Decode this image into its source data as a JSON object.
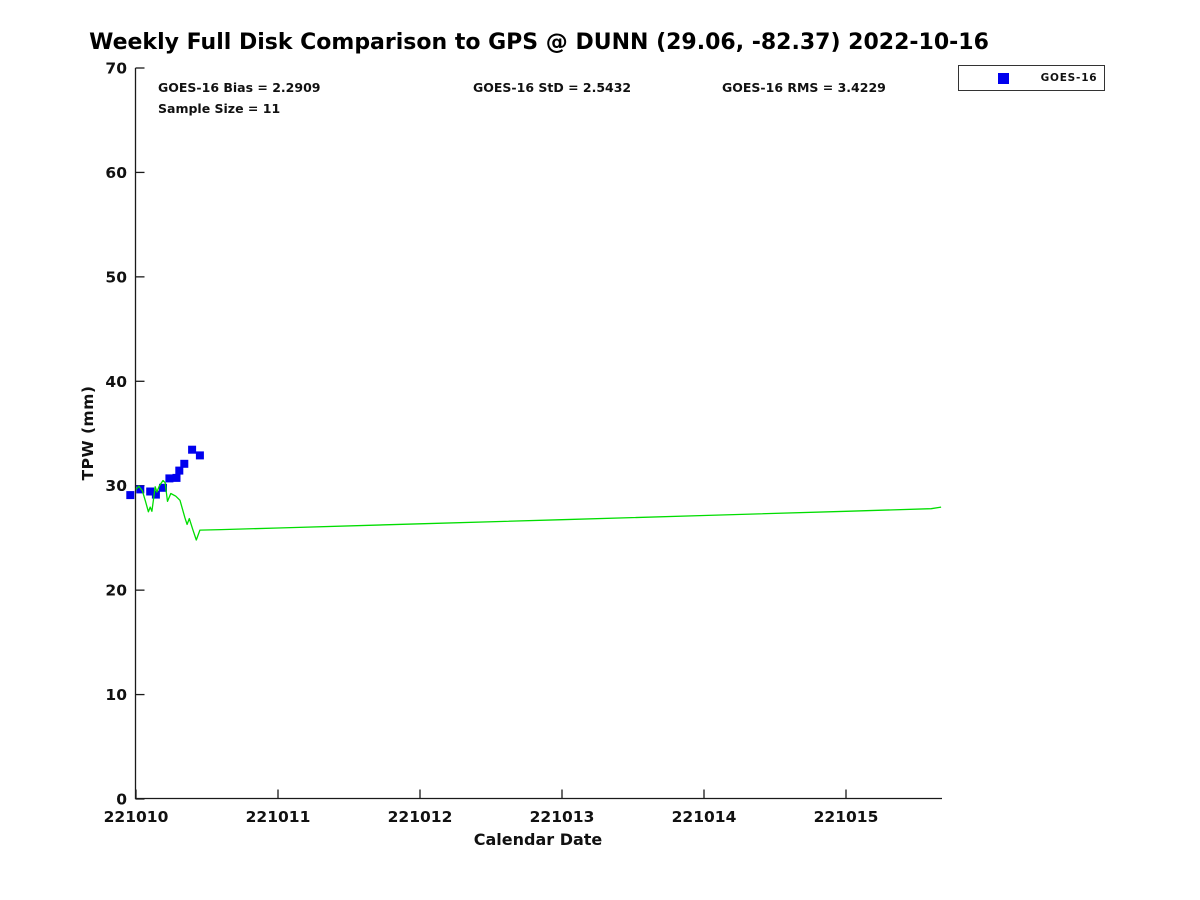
{
  "title": "Weekly Full Disk Comparison to GPS @ DUNN (29.06, -82.37) 2022-10-16",
  "annotations": {
    "bias": "GOES-16 Bias = 2.2909",
    "std": "GOES-16 StD = 2.5432",
    "rms": "GOES-16 RMS = 3.4229",
    "sample_size": "Sample Size = 11"
  },
  "axes": {
    "xlabel": "Calendar Date",
    "ylabel": "TPW (mm)"
  },
  "legend": {
    "label": "GOES-16",
    "marker_color": "#0000ee",
    "position": "top-right-outside"
  },
  "colors": {
    "goes16_marker": "#0000ee",
    "line_green": "#00dd00",
    "axis": "#1a1a1a",
    "text": "#111111",
    "background": "#ffffff"
  },
  "chart_data": {
    "type": "scatter",
    "title": "Weekly Full Disk Comparison to GPS @ DUNN (29.06, -82.37) 2022-10-16",
    "xlabel": "Calendar Date",
    "ylabel": "TPW (mm)",
    "xlim": [
      221010,
      221015.68
    ],
    "ylim": [
      0,
      70
    ],
    "x_ticks": [
      221010,
      221011,
      221012,
      221013,
      221014,
      221015
    ],
    "y_ticks": [
      0,
      10,
      20,
      30,
      40,
      50,
      60,
      70
    ],
    "grid": false,
    "legend_position": "top-right-outside",
    "stats": {
      "bias": 2.2909,
      "std": 2.5432,
      "rms": 3.4229,
      "sample_size": 11
    },
    "series": [
      {
        "name": "GOES-16",
        "type": "scatter",
        "marker": "square",
        "marker_size": 8,
        "color": "#0000ee",
        "points": [
          [
            221009.96,
            29.1
          ],
          [
            221010.03,
            29.65
          ],
          [
            221010.1,
            29.45
          ],
          [
            221010.14,
            29.15
          ],
          [
            221010.19,
            29.8
          ],
          [
            221010.235,
            30.7
          ],
          [
            221010.285,
            30.75
          ],
          [
            221010.305,
            31.45
          ],
          [
            221010.34,
            32.1
          ],
          [
            221010.395,
            33.45
          ],
          [
            221010.45,
            32.9
          ]
        ]
      },
      {
        "name": "green-line",
        "type": "line",
        "marker": "none",
        "line_width": 1.3,
        "color": "#00dd00",
        "points": [
          [
            221010.0,
            29.65
          ],
          [
            221010.02,
            29.95
          ],
          [
            221010.045,
            29.5
          ],
          [
            221010.065,
            28.6
          ],
          [
            221010.087,
            27.5
          ],
          [
            221010.1,
            27.95
          ],
          [
            221010.112,
            27.55
          ],
          [
            221010.135,
            29.9
          ],
          [
            221010.147,
            29.4
          ],
          [
            221010.165,
            30.0
          ],
          [
            221010.19,
            30.5
          ],
          [
            221010.205,
            30.3
          ],
          [
            221010.222,
            28.5
          ],
          [
            221010.245,
            29.25
          ],
          [
            221010.28,
            29.0
          ],
          [
            221010.31,
            28.6
          ],
          [
            221010.345,
            26.9
          ],
          [
            221010.36,
            26.3
          ],
          [
            221010.375,
            26.85
          ],
          [
            221010.4,
            25.8
          ],
          [
            221010.425,
            24.8
          ],
          [
            221010.45,
            25.75
          ],
          [
            221010.6,
            25.8
          ],
          [
            221011.0,
            25.95
          ],
          [
            221012.0,
            26.35
          ],
          [
            221013.0,
            26.75
          ],
          [
            221014.0,
            27.15
          ],
          [
            221015.0,
            27.55
          ],
          [
            221015.6,
            27.8
          ],
          [
            221015.67,
            27.95
          ]
        ]
      }
    ]
  }
}
